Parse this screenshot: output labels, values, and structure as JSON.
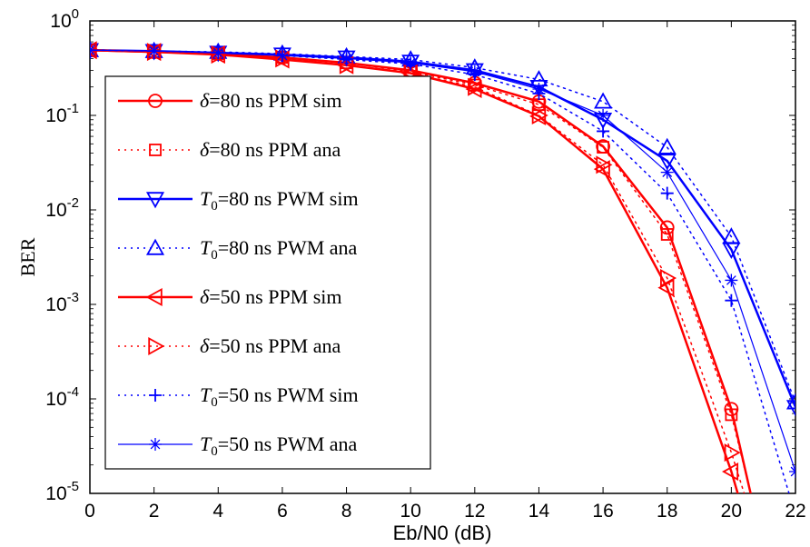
{
  "chart_data": {
    "type": "line",
    "title": "",
    "xlabel": "Eb/N0 (dB)",
    "ylabel": "BER",
    "xlim": [
      0,
      22
    ],
    "ylim": [
      1e-05,
      1
    ],
    "yscale": "log",
    "grid": false,
    "legend_position": "left",
    "x_ticks": [
      0,
      2,
      4,
      6,
      8,
      10,
      12,
      14,
      16,
      18,
      20,
      22
    ],
    "y_ticks": [
      {
        "value": 1,
        "base": "10",
        "exp": "0"
      },
      {
        "value": 0.1,
        "base": "10",
        "exp": "-1"
      },
      {
        "value": 0.01,
        "base": "10",
        "exp": "-2"
      },
      {
        "value": 0.001,
        "base": "10",
        "exp": "-3"
      },
      {
        "value": 0.0001,
        "base": "10",
        "exp": "-4"
      },
      {
        "value": 1e-05,
        "base": "10",
        "exp": "-5"
      }
    ],
    "series": [
      {
        "name": "δ=80 ns PPM sim",
        "color": "#ff0000",
        "dash": "solid",
        "width": 2.5,
        "marker": "circle",
        "x": [
          0,
          2,
          4,
          6,
          8,
          10,
          12,
          14,
          16,
          18,
          20,
          20.6
        ],
        "y": [
          0.49,
          0.47,
          0.45,
          0.41,
          0.36,
          0.3,
          0.22,
          0.14,
          0.047,
          0.0065,
          7.8e-05,
          1e-05
        ]
      },
      {
        "name": "δ=80 ns PPM ana",
        "color": "#ff0000",
        "dash": "dotted",
        "width": 1.5,
        "marker": "square",
        "x": [
          0,
          2,
          4,
          6,
          8,
          10,
          12,
          14,
          16,
          18,
          20,
          20.6
        ],
        "y": [
          0.49,
          0.47,
          0.45,
          0.41,
          0.36,
          0.29,
          0.21,
          0.13,
          0.046,
          0.0055,
          6.8e-05,
          1e-05
        ]
      },
      {
        "name": "T0=80 ns PWM sim",
        "color": "#0000ff",
        "dash": "solid",
        "width": 2.5,
        "marker": "triangle-down",
        "x": [
          0,
          2,
          4,
          6,
          8,
          10,
          12,
          14,
          16,
          18,
          20,
          22
        ],
        "y": [
          0.49,
          0.48,
          0.46,
          0.44,
          0.41,
          0.37,
          0.3,
          0.2,
          0.09,
          0.033,
          0.0038,
          8.2e-05
        ]
      },
      {
        "name": "T0=80 ns PWM ana",
        "color": "#0000ff",
        "dash": "dotted",
        "width": 1.5,
        "marker": "triangle-up",
        "x": [
          0,
          2,
          4,
          6,
          8,
          10,
          12,
          14,
          16,
          18,
          20,
          22
        ],
        "y": [
          0.49,
          0.48,
          0.47,
          0.45,
          0.42,
          0.39,
          0.32,
          0.24,
          0.14,
          0.046,
          0.0052,
          9.2e-05
        ]
      },
      {
        "name": "δ=50 ns PPM sim",
        "color": "#ff0000",
        "dash": "solid",
        "width": 2.5,
        "marker": "triangle-left",
        "x": [
          0,
          2,
          4,
          6,
          8,
          10,
          12,
          14,
          16,
          18,
          20,
          20.2
        ],
        "y": [
          0.49,
          0.47,
          0.44,
          0.39,
          0.34,
          0.28,
          0.19,
          0.098,
          0.027,
          0.0015,
          1.7e-05,
          1e-05
        ]
      },
      {
        "name": "δ=50 ns PPM ana",
        "color": "#ff0000",
        "dash": "dotted",
        "width": 1.5,
        "marker": "triangle-right",
        "x": [
          0,
          2,
          4,
          6,
          8,
          10,
          12,
          14,
          16,
          18,
          20,
          20.4
        ],
        "y": [
          0.49,
          0.47,
          0.44,
          0.4,
          0.34,
          0.28,
          0.2,
          0.1,
          0.03,
          0.0019,
          2.7e-05,
          1e-05
        ]
      },
      {
        "name": "T0=50 ns PWM sim",
        "color": "#0000ff",
        "dash": "dotted",
        "width": 1.5,
        "marker": "plus",
        "x": [
          0,
          2,
          4,
          6,
          8,
          10,
          12,
          14,
          16,
          18,
          20,
          21.8
        ],
        "y": [
          0.49,
          0.48,
          0.46,
          0.43,
          0.39,
          0.35,
          0.27,
          0.17,
          0.068,
          0.015,
          0.0011,
          1e-05
        ]
      },
      {
        "name": "T0=50 ns PWM ana",
        "color": "#0000ff",
        "dash": "solid",
        "width": 1.2,
        "marker": "star",
        "x": [
          0,
          2,
          4,
          6,
          8,
          10,
          12,
          14,
          16,
          18,
          20,
          22
        ],
        "y": [
          0.49,
          0.48,
          0.46,
          0.43,
          0.4,
          0.36,
          0.29,
          0.19,
          0.1,
          0.025,
          0.0018,
          1.7e-05
        ]
      }
    ],
    "legend": [
      {
        "prefix": "δ",
        "sub": "",
        "rest": "=80 ns PPM sim"
      },
      {
        "prefix": "δ",
        "sub": "",
        "rest": "=80 ns PPM ana"
      },
      {
        "prefix": "T",
        "sub": "0",
        "rest": "=80 ns PWM sim"
      },
      {
        "prefix": "T",
        "sub": "0",
        "rest": "=80 ns PWM ana"
      },
      {
        "prefix": "δ",
        "sub": "",
        "rest": "=50 ns PPM sim"
      },
      {
        "prefix": "δ",
        "sub": "",
        "rest": "=50 ns PPM ana"
      },
      {
        "prefix": "T",
        "sub": "0",
        "rest": "=50 ns PWM sim"
      },
      {
        "prefix": "T",
        "sub": "0",
        "rest": "=50 ns PWM ana"
      }
    ]
  }
}
